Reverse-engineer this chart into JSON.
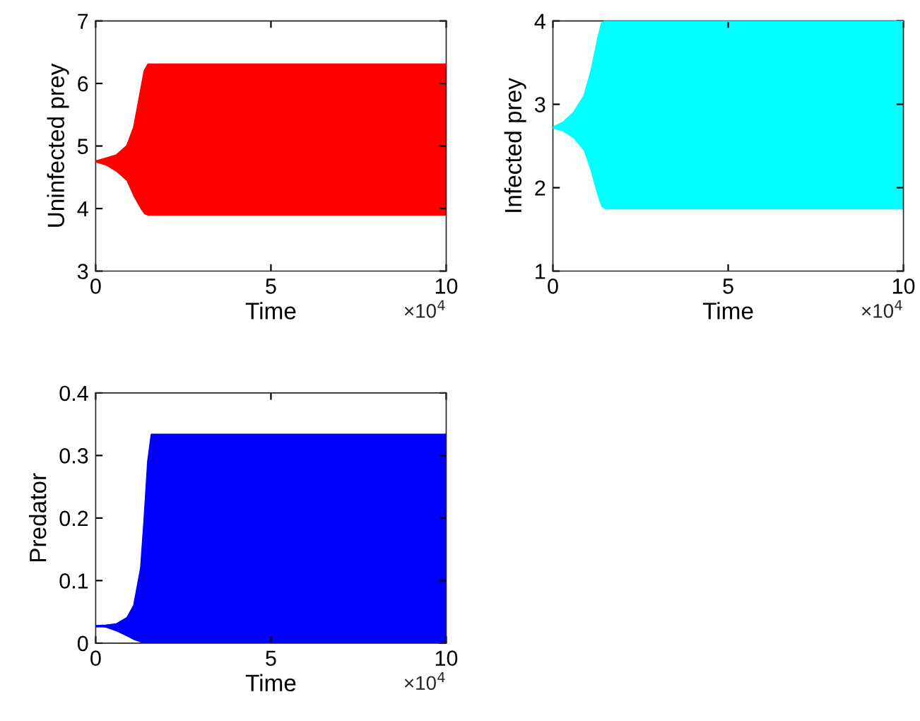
{
  "chart_data": [
    {
      "type": "line",
      "xlabel": "Time",
      "ylabel": "Uninfected prey",
      "xlim": [
        0,
        10
      ],
      "xticks": [
        0,
        5,
        10
      ],
      "ylim": [
        3,
        7
      ],
      "yticks": [
        3,
        4,
        5,
        6,
        7
      ],
      "grid": false,
      "legend": false,
      "annotations": [
        "×10$^{4}$"
      ],
      "series": [
        {
          "color": "#ff0000",
          "x": [
            0,
            0.3,
            0.6,
            0.9,
            1.1,
            1.3,
            1.4,
            1.5,
            10
          ],
          "values": [
            4.75,
            4.8,
            4.85,
            5.0,
            5.3,
            5.9,
            6.2,
            6.3,
            6.3
          ],
          "lower": [
            4.75,
            4.7,
            4.6,
            4.45,
            4.2,
            4.0,
            3.92,
            3.9,
            3.9
          ],
          "upper": [
            4.75,
            4.8,
            4.85,
            5.0,
            5.3,
            5.9,
            6.2,
            6.3,
            6.3
          ]
        }
      ]
    },
    {
      "type": "line",
      "xlabel": "Time",
      "ylabel": "Infected prey",
      "xlim": [
        0,
        10
      ],
      "xticks": [
        0,
        5,
        10
      ],
      "ylim": [
        1,
        4
      ],
      "yticks": [
        1,
        2,
        3,
        4
      ],
      "grid": false,
      "legend": false,
      "annotations": [
        "×10$^{4}$"
      ],
      "series": [
        {
          "color": "#00ffff",
          "x": [
            0,
            0.3,
            0.6,
            0.9,
            1.1,
            1.3,
            1.4,
            1.5,
            10
          ],
          "values": [
            2.72,
            2.78,
            2.9,
            3.1,
            3.4,
            3.8,
            3.97,
            4.0,
            4.0
          ],
          "lower": [
            2.72,
            2.68,
            2.6,
            2.45,
            2.2,
            1.9,
            1.78,
            1.75,
            1.75
          ],
          "upper": [
            2.72,
            2.78,
            2.9,
            3.1,
            3.4,
            3.8,
            3.97,
            4.0,
            4.0
          ]
        }
      ]
    },
    {
      "type": "line",
      "xlabel": "Time",
      "ylabel": "Predator",
      "xlim": [
        0,
        10
      ],
      "xticks": [
        0,
        5,
        10
      ],
      "ylim": [
        0,
        0.4
      ],
      "yticks": [
        0,
        0.1,
        0.2,
        0.3,
        0.4
      ],
      "grid": false,
      "legend": false,
      "annotations": [
        "×10$^{4}$"
      ],
      "series": [
        {
          "color": "#0000ff",
          "x": [
            0,
            0.3,
            0.6,
            0.9,
            1.1,
            1.3,
            1.4,
            1.5,
            1.6,
            10
          ],
          "values": [
            0.027,
            0.028,
            0.03,
            0.04,
            0.06,
            0.12,
            0.2,
            0.29,
            0.333,
            0.333
          ],
          "lower": [
            0.027,
            0.026,
            0.02,
            0.012,
            0.006,
            0.002,
            0.001,
            0,
            0,
            0
          ],
          "upper": [
            0.027,
            0.028,
            0.03,
            0.04,
            0.06,
            0.12,
            0.2,
            0.29,
            0.333,
            0.333
          ]
        }
      ]
    }
  ]
}
